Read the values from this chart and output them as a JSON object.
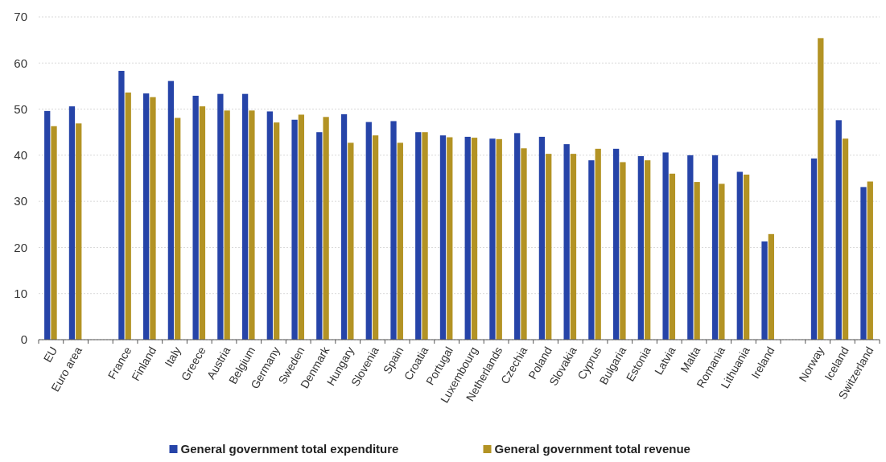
{
  "chart_data": {
    "type": "bar",
    "categories": [
      "EU",
      "Euro area",
      null,
      "France",
      "Finland",
      "Italy",
      "Greece",
      "Austria",
      "Belgium",
      "Germany",
      "Sweden",
      "Denmark",
      "Hungary",
      "Slovenia",
      "Spain",
      "Croatia",
      "Portugal",
      "Luxembourg",
      "Netherlands",
      "Czechia",
      "Poland",
      "Slovakia",
      "Cyprus",
      "Bulgaria",
      "Estonia",
      "Latvia",
      "Malta",
      "Romania",
      "Lithuania",
      "Ireland",
      null,
      "Norway",
      "Iceland",
      "Switzerland"
    ],
    "series": [
      {
        "name": "General government total expenditure",
        "color": "#2644a8",
        "values": [
          49.6,
          50.6,
          null,
          58.3,
          53.4,
          56.1,
          52.9,
          53.3,
          53.3,
          49.5,
          47.7,
          45.0,
          48.9,
          47.2,
          47.4,
          45.0,
          44.3,
          44.0,
          43.6,
          44.8,
          44.0,
          42.4,
          38.9,
          41.4,
          39.8,
          40.6,
          40.0,
          40.0,
          36.4,
          21.3,
          null,
          39.3,
          47.6,
          33.1
        ]
      },
      {
        "name": "General government total revenue",
        "color": "#b39324",
        "values": [
          46.3,
          46.9,
          null,
          53.6,
          52.6,
          48.1,
          50.6,
          49.7,
          49.7,
          47.1,
          48.8,
          48.3,
          42.7,
          44.3,
          42.7,
          45.0,
          43.9,
          43.8,
          43.5,
          41.5,
          40.3,
          40.3,
          41.4,
          38.5,
          38.9,
          36.0,
          34.2,
          33.8,
          35.8,
          22.9,
          null,
          65.4,
          43.6,
          34.3
        ]
      }
    ],
    "ylim": [
      0,
      70
    ],
    "yticks": [
      0,
      10,
      20,
      30,
      40,
      50,
      60,
      70
    ],
    "grid": "y",
    "legend": "bottom"
  }
}
